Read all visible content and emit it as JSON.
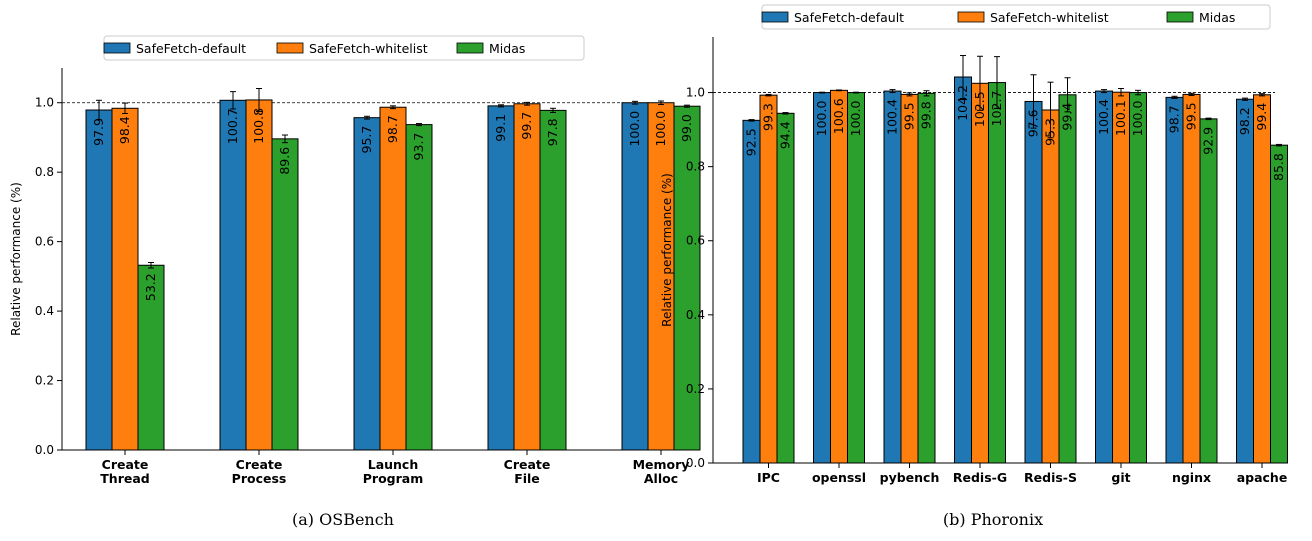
{
  "chart_data": [
    {
      "type": "bar",
      "caption": "(a) OSBench",
      "ylabel": "Relative performance (%)",
      "ylim": [
        0,
        1.1
      ],
      "yticks": [
        "0.0",
        "0.2",
        "0.4",
        "0.6",
        "0.8",
        "1.0"
      ],
      "reference_line": 1.0,
      "legend": "top-center",
      "categories": [
        [
          "Create",
          "Thread"
        ],
        [
          "Create",
          "Process"
        ],
        [
          "Launch",
          "Program"
        ],
        [
          "Create",
          "File"
        ],
        [
          "Memory",
          "Alloc"
        ]
      ],
      "series": [
        {
          "name": "SafeFetch-default",
          "color": "#1f77b4",
          "values": [
            0.979,
            1.007,
            0.957,
            0.991,
            1.0
          ],
          "labels": [
            "97.9",
            "100.7",
            "95.7",
            "99.1",
            "100.0"
          ],
          "err": [
            0.028,
            0.025,
            0.004,
            0.003,
            0.004
          ]
        },
        {
          "name": "SafeFetch-whitelist",
          "color": "#ff7f0e",
          "values": [
            0.984,
            1.008,
            0.987,
            0.997,
            1.0
          ],
          "labels": [
            "98.4",
            "100.8",
            "98.7",
            "99.7",
            "100.0"
          ],
          "err": [
            0.015,
            0.033,
            0.004,
            0.004,
            0.005
          ]
        },
        {
          "name": "Midas",
          "color": "#2ca02c",
          "values": [
            0.532,
            0.896,
            0.937,
            0.978,
            0.99
          ],
          "labels": [
            "53.2",
            "89.6",
            "93.7",
            "97.8",
            "99.0"
          ],
          "err": [
            0.008,
            0.011,
            0.003,
            0.006,
            0.003
          ]
        }
      ]
    },
    {
      "type": "bar",
      "caption": "(b) Phoronix",
      "ylabel": "Relative performance (%)",
      "ylim": [
        0,
        1.15
      ],
      "yticks": [
        "0.0",
        "0.2",
        "0.4",
        "0.6",
        "0.8",
        "1.0"
      ],
      "reference_line": 1.0,
      "legend": "top-center",
      "categories": [
        [
          "IPC"
        ],
        [
          "openssl"
        ],
        [
          "pybench"
        ],
        [
          "Redis-G"
        ],
        [
          "Redis-S"
        ],
        [
          "git"
        ],
        [
          "nginx"
        ],
        [
          "apache"
        ]
      ],
      "series": [
        {
          "name": "SafeFetch-default",
          "color": "#1f77b4",
          "values": [
            0.925,
            1.0,
            1.004,
            1.042,
            0.976,
            1.004,
            0.987,
            0.982
          ],
          "labels": [
            "92.5",
            "100.0",
            "100.4",
            "104.2",
            "97.6",
            "100.4",
            "98.7",
            "98.2"
          ],
          "err": [
            0.002,
            0.001,
            0.004,
            0.058,
            0.072,
            0.004,
            0.003,
            0.003
          ]
        },
        {
          "name": "SafeFetch-whitelist",
          "color": "#ff7f0e",
          "values": [
            0.993,
            1.006,
            0.995,
            1.025,
            0.953,
            1.001,
            0.995,
            0.994
          ],
          "labels": [
            "99.3",
            "100.6",
            "99.5",
            "102.5",
            "95.3",
            "100.1",
            "99.5",
            "99.4"
          ],
          "err": [
            0.002,
            0.001,
            0.004,
            0.073,
            0.075,
            0.01,
            0.003,
            0.003
          ]
        },
        {
          "name": "Midas",
          "color": "#2ca02c",
          "values": [
            0.944,
            1.0,
            0.998,
            1.027,
            0.994,
            1.0,
            0.929,
            0.858
          ],
          "labels": [
            "94.4",
            "100.0",
            "99.8",
            "102.7",
            "99.4",
            "100.0",
            "92.9",
            "85.8"
          ],
          "err": [
            0.002,
            0.001,
            0.007,
            0.07,
            0.046,
            0.006,
            0.002,
            0.002
          ]
        }
      ]
    }
  ]
}
